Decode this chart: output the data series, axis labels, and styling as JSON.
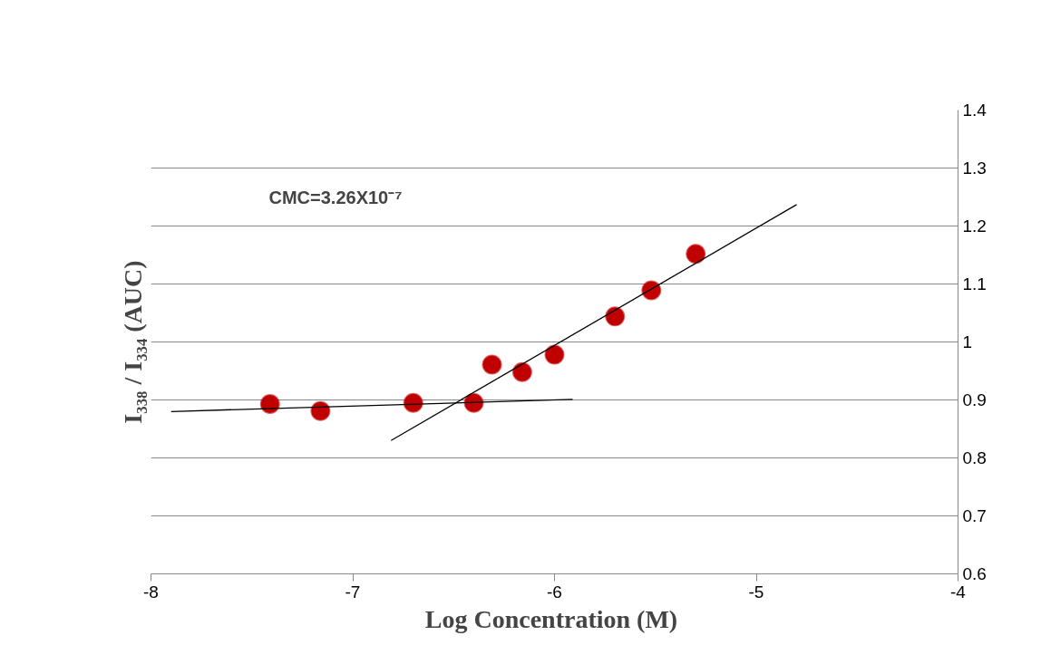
{
  "chart_data": {
    "type": "scatter",
    "xlabel": "Log Concentration  (M)",
    "ylabel": "I₃₃₈ / I₃₃₄ (AUC)",
    "annotations": [
      "CMC=3.26X10⁻⁷"
    ],
    "xlim": [
      -8,
      -4
    ],
    "xticks": [
      -8,
      -7,
      -6,
      -5,
      -4
    ],
    "ylim": [
      0.6,
      1.4
    ],
    "yticks": [
      0.6,
      0.7,
      0.8,
      0.9,
      1,
      1.1,
      1.2,
      1.3,
      1.4
    ],
    "grid": "y",
    "marker": "circle",
    "series": [
      {
        "color": "#c00000",
        "x": [
          -7.41,
          -7.16,
          -6.7,
          -6.4
        ],
        "values": [
          0.893,
          0.881,
          0.895,
          0.895
        ]
      },
      {
        "color": "#c00000",
        "x": [
          -6.31,
          -6.16,
          -6.0,
          -5.7,
          -5.52,
          -5.3
        ],
        "values": [
          0.961,
          0.948,
          0.978,
          1.044,
          1.089,
          1.152
        ]
      },
      {
        "type": "line",
        "color": "#000000",
        "marker": "none",
        "x": [
          -7.9,
          -5.91
        ],
        "values": [
          0.88,
          0.901
        ]
      },
      {
        "type": "line",
        "color": "#000000",
        "marker": "none",
        "x": [
          -6.81,
          -4.8
        ],
        "values": [
          0.83,
          1.237
        ]
      }
    ]
  }
}
